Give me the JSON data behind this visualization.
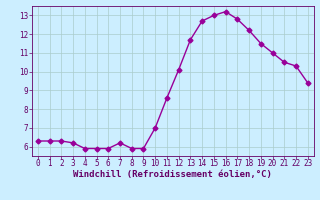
{
  "x": [
    0,
    1,
    2,
    3,
    4,
    5,
    6,
    7,
    8,
    9,
    10,
    11,
    12,
    13,
    14,
    15,
    16,
    17,
    18,
    19,
    20,
    21,
    22,
    23
  ],
  "y": [
    6.3,
    6.3,
    6.3,
    6.2,
    5.9,
    5.9,
    5.9,
    6.2,
    5.9,
    5.9,
    7.0,
    8.6,
    10.1,
    11.7,
    12.7,
    13.0,
    13.2,
    12.8,
    12.2,
    11.5,
    11.0,
    10.5,
    10.3,
    9.4
  ],
  "line_color": "#990099",
  "marker": "D",
  "markersize": 2.5,
  "linewidth": 1.0,
  "xlabel": "Windchill (Refroidissement éolien,°C)",
  "xlabel_fontsize": 6.5,
  "xlabel_color": "#660066",
  "tick_color": "#660066",
  "tick_fontsize": 5.5,
  "background_color": "#cceeff",
  "grid_color": "#aacccc",
  "xlim": [
    -0.5,
    23.5
  ],
  "ylim": [
    5.5,
    13.5
  ],
  "yticks": [
    6,
    7,
    8,
    9,
    10,
    11,
    12,
    13
  ],
  "xticks": [
    0,
    1,
    2,
    3,
    4,
    5,
    6,
    7,
    8,
    9,
    10,
    11,
    12,
    13,
    14,
    15,
    16,
    17,
    18,
    19,
    20,
    21,
    22,
    23
  ]
}
